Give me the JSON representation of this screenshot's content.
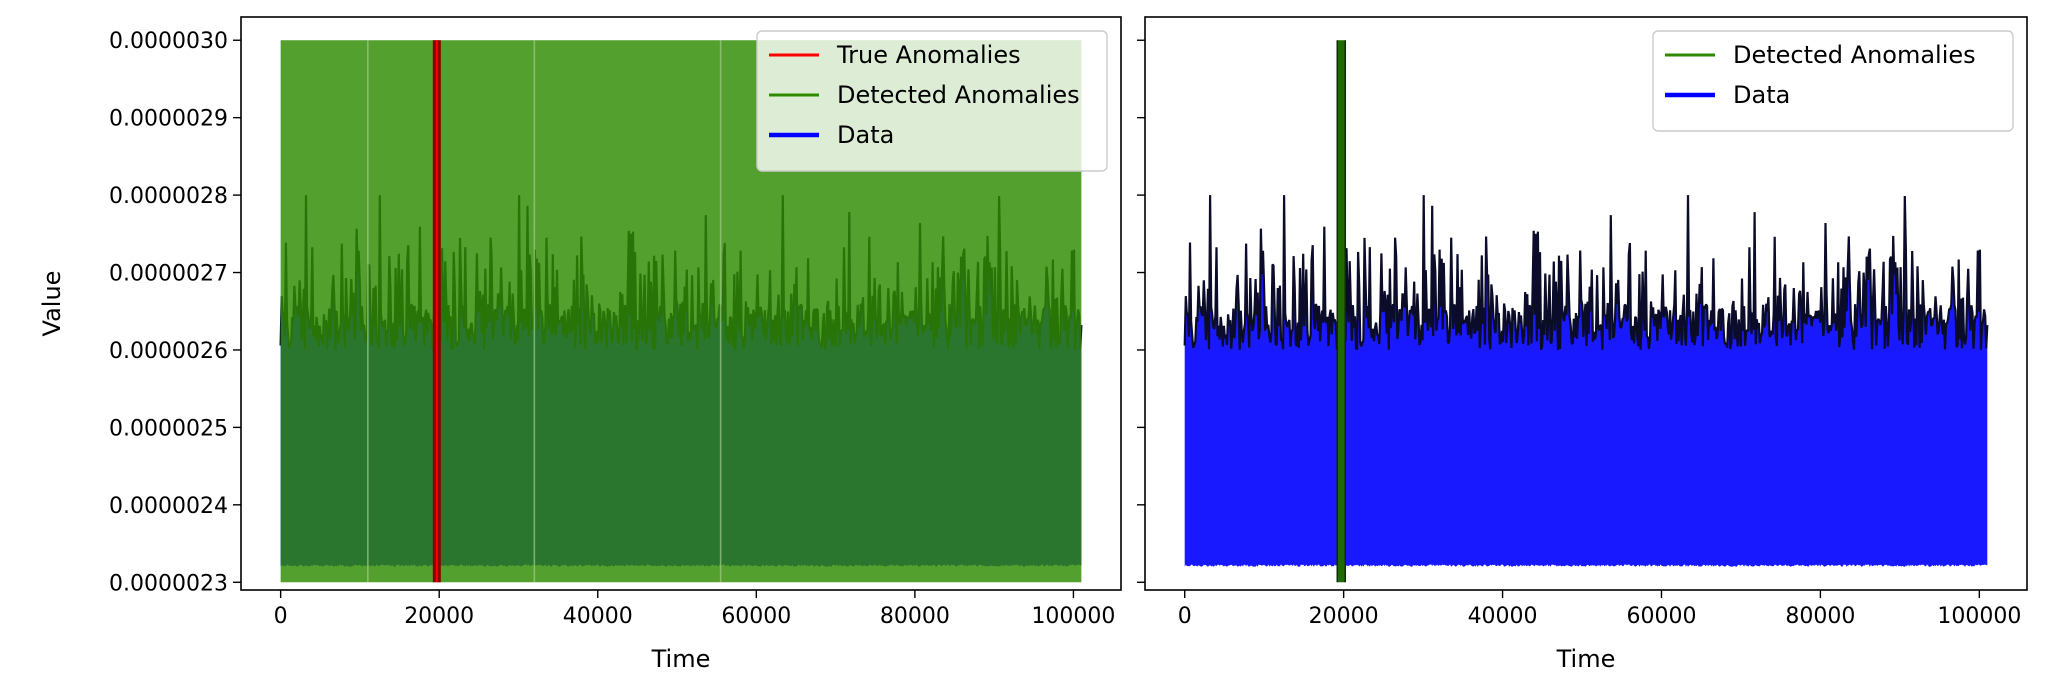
{
  "chart_data": [
    {
      "type": "line",
      "title": "",
      "xlabel": "Time",
      "ylabel": "Value",
      "xlim": [
        -5000,
        106000
      ],
      "ylim": [
        2.29e-06,
        3.03e-06
      ],
      "x_ticks": [
        0,
        20000,
        40000,
        60000,
        80000,
        100000
      ],
      "x_tick_labels": [
        "0",
        "20000",
        "40000",
        "60000",
        "80000",
        "100000"
      ],
      "y_ticks": [
        2.3e-06,
        2.4e-06,
        2.5e-06,
        2.6e-06,
        2.7e-06,
        2.8e-06,
        2.9e-06,
        3e-06
      ],
      "y_tick_labels": [
        "0.0000023",
        "0.0000024",
        "0.0000025",
        "0.0000026",
        "0.0000027",
        "0.0000028",
        "0.0000029",
        "0.0000030"
      ],
      "grid": false,
      "legend_position": "top-right",
      "series": [
        {
          "name": "True Anomalies",
          "color": "#ff0000",
          "x": [
            19700
          ],
          "y_min": 2.3e-06,
          "y_max": 3e-06
        },
        {
          "name": "Detected Anomalies",
          "color": "#2e8b00",
          "x_range": [
            0,
            101000
          ],
          "y_min": 2.3e-06,
          "y_max": 3e-06
        },
        {
          "name": "Data",
          "color": "#0000ff",
          "x_range": [
            0,
            101000
          ],
          "y_min": 2.3e-06,
          "y_max": 2.8e-06
        }
      ]
    },
    {
      "type": "line",
      "title": "",
      "xlabel": "Time",
      "ylabel": "",
      "xlim": [
        -5000,
        106000
      ],
      "ylim": [
        2.29e-06,
        3.03e-06
      ],
      "x_ticks": [
        0,
        20000,
        40000,
        60000,
        80000,
        100000
      ],
      "x_tick_labels": [
        "0",
        "20000",
        "40000",
        "60000",
        "80000",
        "100000"
      ],
      "grid": false,
      "legend_position": "top-right",
      "series": [
        {
          "name": "Detected Anomalies",
          "color": "#2e8b00",
          "x": [
            19700
          ],
          "y_min": 2.3e-06,
          "y_max": 3e-06
        },
        {
          "name": "Data",
          "color": "#0000ff",
          "x_range": [
            0,
            101000
          ],
          "y_min": 2.3e-06,
          "y_max": 2.8e-06
        }
      ]
    }
  ]
}
